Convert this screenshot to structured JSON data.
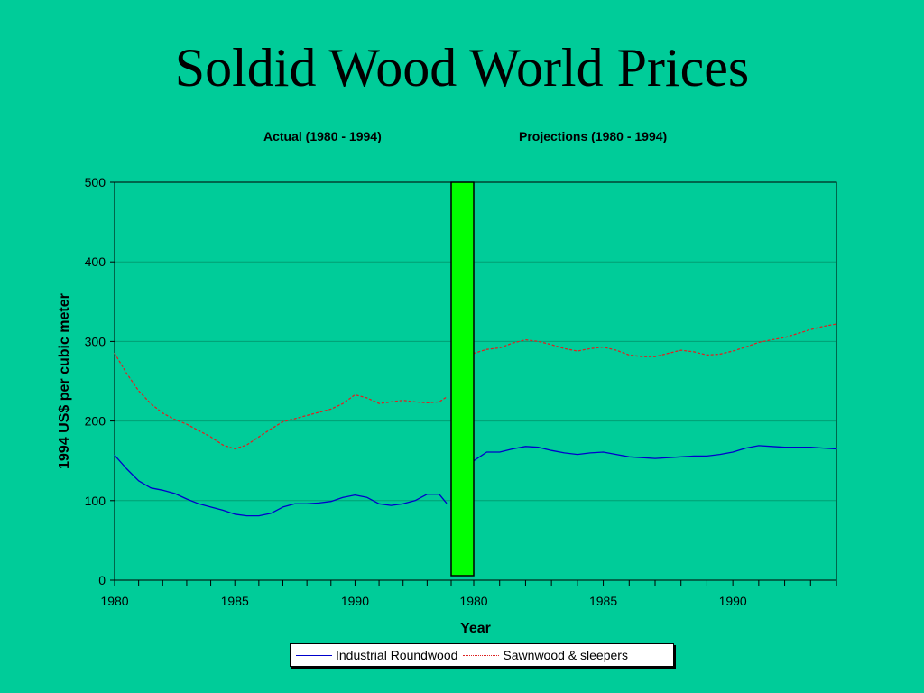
{
  "slide": {
    "title": "Soldid Wood World Prices",
    "section_labels": [
      "Actual (1980 - 1994)",
      "Projections (1980 - 1994)"
    ]
  },
  "colors": {
    "background": "#00CC99",
    "industrial_roundwood": "#0000CC",
    "sawnwood": "#DD2222",
    "divider_bar": "#00FF00"
  },
  "chart_data": {
    "type": "line",
    "ylabel": "1994 US$ per cubic meter",
    "xlabel": "Year",
    "ylim": [
      0,
      500
    ],
    "yticks": [
      0,
      100,
      200,
      300,
      400,
      500
    ],
    "grid": true,
    "legend_position": "bottom",
    "panels": [
      {
        "label": "Actual (1980 - 1994)",
        "xlim": [
          1980,
          1994
        ],
        "xtick_labels": [
          "1980",
          "1985",
          "1990"
        ],
        "xtick_values": [
          1980,
          1985,
          1990
        ],
        "x": [
          1980,
          1980.5,
          1981,
          1981.5,
          1982,
          1982.5,
          1983,
          1983.5,
          1984,
          1984.5,
          1985,
          1985.5,
          1986,
          1986.5,
          1987,
          1987.5,
          1988,
          1988.5,
          1989,
          1989.5,
          1990,
          1990.5,
          1991,
          1991.5,
          1992,
          1992.5,
          1993,
          1993.5,
          1993.8
        ],
        "series": [
          {
            "name": "Industrial Roundwood",
            "values": [
              157,
              140,
              125,
              116,
              113,
              109,
              102,
              96,
              92,
              88,
              83,
              81,
              81,
              84,
              92,
              96,
              96,
              97,
              99,
              104,
              107,
              104,
              96,
              94,
              96,
              100,
              108,
              108,
              97
            ]
          },
          {
            "name": "Sawnwood & sleepers",
            "values": [
              285,
              260,
              238,
              222,
              210,
              202,
              196,
              188,
              180,
              170,
              165,
              170,
              180,
              190,
              199,
              203,
              207,
              211,
              215,
              222,
              233,
              229,
              222,
              224,
              226,
              224,
              223,
              224,
              230
            ]
          }
        ]
      },
      {
        "label": "Projections (1980 - 1994)",
        "xlim": [
          1980,
          1994
        ],
        "xtick_labels": [
          "1980",
          "1985",
          "1990"
        ],
        "xtick_values": [
          1980,
          1985,
          1990
        ],
        "x": [
          1980,
          1980.5,
          1981,
          1981.5,
          1982,
          1982.5,
          1983,
          1983.5,
          1984,
          1984.5,
          1985,
          1985.5,
          1986,
          1986.5,
          1987,
          1987.5,
          1988,
          1988.5,
          1989,
          1989.5,
          1990,
          1990.5,
          1991,
          1991.5,
          1992,
          1992.5,
          1993,
          1993.5,
          1994
        ],
        "series": [
          {
            "name": "Industrial Roundwood",
            "values": [
              150,
              161,
              161,
              165,
              168,
              167,
              163,
              160,
              158,
              160,
              161,
              158,
              155,
              154,
              153,
              154,
              155,
              156,
              156,
              158,
              161,
              166,
              169,
              168,
              167,
              167,
              167,
              166,
              165
            ]
          },
          {
            "name": "Sawnwood & sleepers",
            "values": [
              285,
              290,
              292,
              298,
              302,
              300,
              296,
              291,
              288,
              291,
              293,
              289,
              283,
              281,
              281,
              285,
              289,
              287,
              283,
              284,
              288,
              293,
              299,
              302,
              305,
              310,
              315,
              319,
              322
            ]
          }
        ]
      }
    ]
  }
}
